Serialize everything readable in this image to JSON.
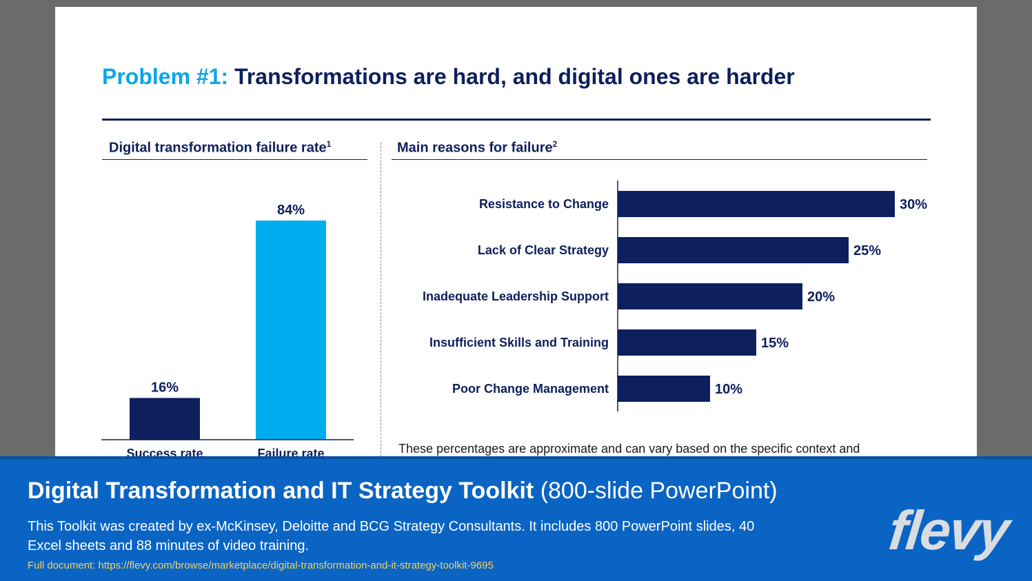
{
  "slide": {
    "title_prefix": "Problem #1:",
    "title_main": "Transformations are hard, and digital ones are harder",
    "note": "These percentages are approximate and can vary based on the specific context and"
  },
  "chart_data": [
    {
      "type": "bar",
      "title": "Digital transformation failure rate",
      "footnote_marker": "1",
      "categories": [
        "Success rate",
        "Failure rate"
      ],
      "values": [
        16,
        84
      ],
      "value_labels": [
        "16%",
        "84%"
      ],
      "colors": [
        "#0d1f5c",
        "#00aeef"
      ],
      "ylim": [
        0,
        100
      ]
    },
    {
      "type": "bar",
      "orientation": "horizontal",
      "title": "Main reasons for failure",
      "footnote_marker": "2",
      "categories": [
        "Resistance to Change",
        "Lack of Clear Strategy",
        "Inadequate Leadership Support",
        "Insufficient Skills and Training",
        "Poor Change Management"
      ],
      "values": [
        30,
        25,
        20,
        15,
        10
      ],
      "value_labels": [
        "30%",
        "25%",
        "20%",
        "15%",
        "10%"
      ],
      "color": "#0d1f5c",
      "xlim": [
        0,
        30
      ]
    }
  ],
  "banner": {
    "title_main": "Digital Transformation and IT Strategy Toolkit",
    "title_sub": "(800-slide PowerPoint)",
    "description": "This Toolkit was created by ex-McKinsey, Deloitte and BCG Strategy Consultants. It includes 800 PowerPoint slides, 40 Excel sheets and 88 minutes of video training.",
    "link": "Full document: https://flevy.com/browse/marketplace/digital-transformation-and-it-strategy-toolkit-9695",
    "logo_text": "flevy"
  }
}
